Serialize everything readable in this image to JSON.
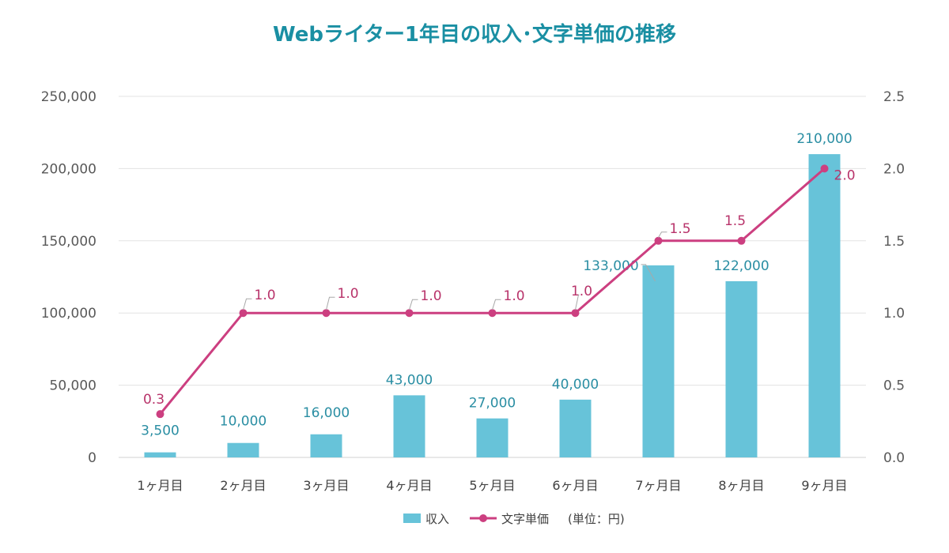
{
  "chart_data": {
    "type": "bar",
    "title": "Webライター1年目の収入･文字単価の推移",
    "categories": [
      "1ヶ月目",
      "2ヶ月目",
      "3ヶ月目",
      "4ヶ月目",
      "5ヶ月目",
      "6ヶ月目",
      "7ヶ月目",
      "8ヶ月目",
      "9ヶ月目"
    ],
    "series": [
      {
        "name": "収入",
        "type": "bar",
        "axis": "left",
        "color": "#67c3d9",
        "values": [
          3500,
          10000,
          16000,
          43000,
          27000,
          40000,
          133000,
          122000,
          210000
        ],
        "labels": [
          "3,500",
          "10,000",
          "16,000",
          "43,000",
          "27,000",
          "40,000",
          "133,000",
          "122,000",
          "210,000"
        ]
      },
      {
        "name": "文字単価",
        "type": "line",
        "axis": "right",
        "color": "#cc3f80",
        "values": [
          0.3,
          1.0,
          1.0,
          1.0,
          1.0,
          1.0,
          1.5,
          1.5,
          2.0
        ],
        "labels": [
          "0.3",
          "1.0",
          "1.0",
          "1.0",
          "1.0",
          "1.0",
          "1.5",
          "1.5",
          "2.0"
        ]
      }
    ],
    "left_axis": {
      "range": [
        0,
        250000
      ],
      "ticks": [
        0,
        50000,
        100000,
        150000,
        200000,
        250000
      ],
      "tick_labels": [
        "0",
        "50,000",
        "100,000",
        "150,000",
        "200,000",
        "250,000"
      ]
    },
    "right_axis": {
      "range": [
        0,
        2.5
      ],
      "ticks": [
        0,
        0.5,
        1.0,
        1.5,
        2.0,
        2.5
      ],
      "tick_labels": [
        "0.0",
        "0.5",
        "1.0",
        "1.5",
        "2.0",
        "2.5"
      ]
    },
    "grid": true,
    "legend_position": "bottom-center",
    "legend_note": "(単位：円)"
  }
}
